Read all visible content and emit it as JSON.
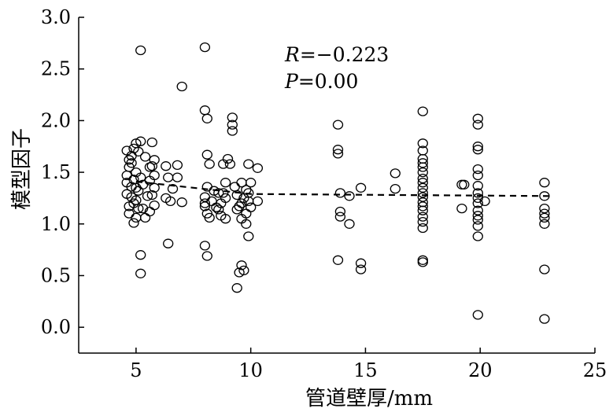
{
  "chart_data": {
    "type": "scatter",
    "xlabel": "管道壁厚/mm",
    "ylabel": "模型因子",
    "xlim": [
      2.5,
      25
    ],
    "ylim": [
      -0.25,
      3.0
    ],
    "xticks": [
      "5",
      "10",
      "15",
      "20",
      "25"
    ],
    "yticks": [
      "0.0",
      "0.5",
      "1.0",
      "1.5",
      "2.0",
      "2.5",
      "3.0"
    ],
    "annotations": [
      {
        "italic": "R",
        "rest": "=−0.223"
      },
      {
        "italic": "P",
        "rest": "=0.00"
      }
    ],
    "trend_line": {
      "style": "dashed",
      "points": [
        [
          5.0,
          1.41
        ],
        [
          10.0,
          1.29
        ],
        [
          23.0,
          1.27
        ]
      ]
    },
    "series": [
      {
        "marker": "open-circle",
        "points": [
          [
            4.6,
            1.71
          ],
          [
            4.7,
            1.62
          ],
          [
            4.8,
            1.66
          ],
          [
            4.9,
            1.73
          ],
          [
            5.0,
            1.78
          ],
          [
            5.1,
            1.7
          ],
          [
            4.8,
            1.59
          ],
          [
            4.7,
            1.55
          ],
          [
            4.6,
            1.47
          ],
          [
            5.0,
            1.5
          ],
          [
            5.2,
            1.45
          ],
          [
            4.9,
            1.43
          ],
          [
            4.6,
            1.4
          ],
          [
            4.8,
            1.36
          ],
          [
            5.0,
            1.35
          ],
          [
            5.1,
            1.32
          ],
          [
            4.6,
            1.29
          ],
          [
            4.8,
            1.26
          ],
          [
            5.0,
            1.23
          ],
          [
            4.9,
            1.2
          ],
          [
            4.7,
            1.17
          ],
          [
            5.1,
            1.15
          ],
          [
            4.7,
            1.1
          ],
          [
            5.0,
            1.06
          ],
          [
            4.9,
            1.01
          ],
          [
            5.2,
            1.8
          ],
          [
            5.4,
            1.65
          ],
          [
            5.6,
            1.55
          ],
          [
            5.3,
            1.38
          ],
          [
            5.5,
            1.27
          ],
          [
            5.3,
            1.15
          ],
          [
            5.4,
            1.06
          ],
          [
            5.7,
            1.79
          ],
          [
            5.8,
            1.62
          ],
          [
            5.7,
            1.56
          ],
          [
            5.8,
            1.47
          ],
          [
            5.6,
            1.42
          ],
          [
            5.8,
            1.35
          ],
          [
            5.7,
            1.28
          ],
          [
            5.8,
            1.18
          ],
          [
            5.6,
            1.12
          ],
          [
            5.2,
            2.68
          ],
          [
            5.2,
            0.7
          ],
          [
            5.2,
            0.52
          ],
          [
            6.3,
            1.56
          ],
          [
            6.4,
            1.45
          ],
          [
            6.6,
            1.34
          ],
          [
            6.3,
            1.25
          ],
          [
            6.5,
            1.22
          ],
          [
            6.8,
            1.57
          ],
          [
            6.8,
            1.45
          ],
          [
            6.4,
            0.81
          ],
          [
            7.0,
            2.33
          ],
          [
            7.0,
            1.21
          ],
          [
            8.0,
            2.71
          ],
          [
            8.0,
            2.1
          ],
          [
            8.1,
            2.02
          ],
          [
            8.1,
            1.67
          ],
          [
            8.2,
            1.58
          ],
          [
            8.1,
            1.36
          ],
          [
            8.0,
            1.26
          ],
          [
            8.0,
            1.2
          ],
          [
            8.0,
            1.17
          ],
          [
            8.1,
            1.1
          ],
          [
            8.2,
            1.06
          ],
          [
            8.0,
            0.79
          ],
          [
            8.1,
            0.69
          ],
          [
            8.4,
            1.32
          ],
          [
            8.6,
            1.3
          ],
          [
            8.3,
            1.22
          ],
          [
            8.5,
            1.16
          ],
          [
            8.7,
            1.2
          ],
          [
            8.8,
            1.58
          ],
          [
            8.9,
            1.4
          ],
          [
            8.8,
            1.3
          ],
          [
            8.9,
            1.25
          ],
          [
            8.6,
            1.14
          ],
          [
            8.7,
            1.08
          ],
          [
            8.9,
            1.05
          ],
          [
            9.0,
            1.63
          ],
          [
            9.2,
            2.03
          ],
          [
            9.2,
            1.96
          ],
          [
            9.2,
            1.9
          ],
          [
            9.1,
            1.58
          ],
          [
            9.3,
            1.36
          ],
          [
            9.4,
            1.28
          ],
          [
            9.6,
            1.4
          ],
          [
            9.8,
            1.33
          ],
          [
            9.7,
            1.25
          ],
          [
            9.6,
            1.2
          ],
          [
            9.5,
            1.17
          ],
          [
            9.4,
            1.14
          ],
          [
            9.8,
            1.1
          ],
          [
            9.6,
            1.05
          ],
          [
            9.8,
            1.0
          ],
          [
            9.6,
            0.6
          ],
          [
            9.7,
            0.55
          ],
          [
            9.5,
            0.53
          ],
          [
            9.4,
            0.38
          ],
          [
            9.9,
            1.58
          ],
          [
            10.0,
            1.4
          ],
          [
            9.9,
            1.3
          ],
          [
            9.9,
            1.22
          ],
          [
            10.0,
            1.16
          ],
          [
            9.9,
            0.88
          ],
          [
            10.3,
            1.54
          ],
          [
            10.3,
            1.22
          ],
          [
            13.8,
            1.96
          ],
          [
            13.8,
            1.72
          ],
          [
            13.8,
            1.68
          ],
          [
            13.9,
            1.3
          ],
          [
            13.9,
            1.12
          ],
          [
            13.9,
            1.07
          ],
          [
            13.8,
            0.65
          ],
          [
            14.3,
            1.27
          ],
          [
            14.3,
            1.0
          ],
          [
            14.8,
            1.35
          ],
          [
            14.8,
            0.62
          ],
          [
            14.8,
            0.56
          ],
          [
            16.3,
            1.49
          ],
          [
            16.3,
            1.34
          ],
          [
            17.5,
            2.09
          ],
          [
            17.5,
            1.78
          ],
          [
            17.5,
            1.71
          ],
          [
            17.5,
            1.63
          ],
          [
            17.5,
            1.59
          ],
          [
            17.5,
            1.55
          ],
          [
            17.5,
            1.5
          ],
          [
            17.5,
            1.44
          ],
          [
            17.5,
            1.4
          ],
          [
            17.5,
            1.35
          ],
          [
            17.5,
            1.3
          ],
          [
            17.5,
            1.26
          ],
          [
            17.5,
            1.21
          ],
          [
            17.5,
            1.17
          ],
          [
            17.5,
            1.13
          ],
          [
            17.5,
            1.07
          ],
          [
            17.5,
            1.02
          ],
          [
            17.5,
            0.96
          ],
          [
            17.5,
            0.65
          ],
          [
            17.5,
            0.63
          ],
          [
            19.2,
            1.38
          ],
          [
            19.3,
            1.38
          ],
          [
            19.2,
            1.15
          ],
          [
            19.9,
            2.02
          ],
          [
            19.9,
            1.96
          ],
          [
            19.9,
            1.75
          ],
          [
            19.9,
            1.72
          ],
          [
            19.9,
            1.53
          ],
          [
            19.9,
            1.47
          ],
          [
            19.9,
            1.37
          ],
          [
            19.9,
            1.3
          ],
          [
            19.9,
            1.25
          ],
          [
            19.9,
            1.2
          ],
          [
            19.9,
            1.13
          ],
          [
            19.9,
            1.08
          ],
          [
            19.9,
            1.04
          ],
          [
            19.9,
            0.98
          ],
          [
            19.9,
            0.88
          ],
          [
            19.9,
            0.12
          ],
          [
            20.2,
            1.22
          ],
          [
            22.8,
            1.4
          ],
          [
            22.8,
            1.27
          ],
          [
            22.8,
            1.15
          ],
          [
            22.8,
            1.1
          ],
          [
            22.8,
            1.06
          ],
          [
            22.8,
            1.0
          ],
          [
            22.8,
            0.56
          ],
          [
            22.8,
            0.08
          ]
        ]
      }
    ]
  }
}
